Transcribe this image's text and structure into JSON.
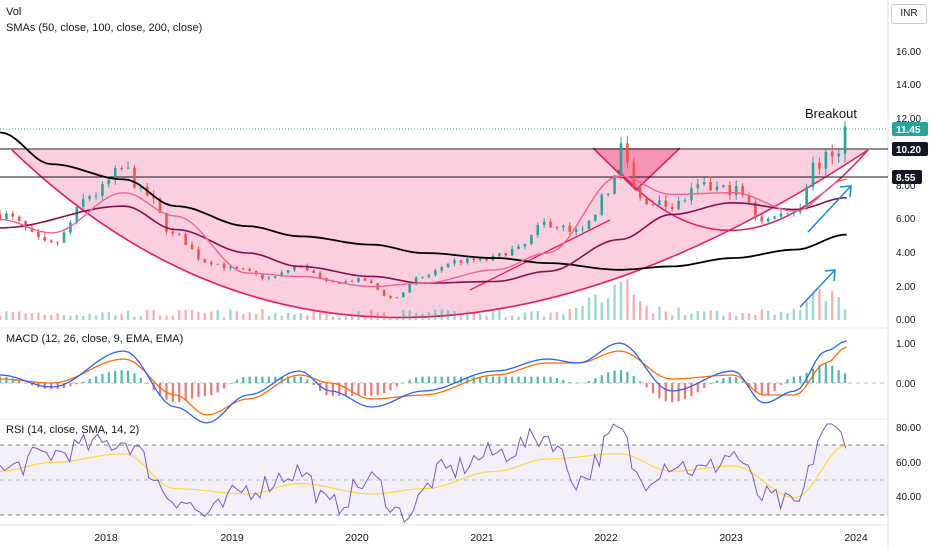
{
  "legends": {
    "vol": "Vol",
    "smas": "SMAs (50, close, 100, close, 200, close)",
    "macd": "MACD (12, 26, close, 9, EMA, EMA)",
    "rsi": "RSI (14, close, SMA, 14, 2)"
  },
  "currency": "INR",
  "annotation": "Breakout",
  "price_axis": {
    "ticks": [
      "16.00",
      "14.00",
      "12.00",
      "8.00",
      "6.00",
      "4.00",
      "2.00",
      "0.00"
    ],
    "badges": [
      {
        "label": "11.45",
        "color": "#26a69a"
      },
      {
        "label": "10.20",
        "color": "#131722"
      },
      {
        "label": "8.55",
        "color": "#131722"
      }
    ]
  },
  "macd_axis": {
    "ticks": [
      "1.00",
      "0.00"
    ]
  },
  "rsi_axis": {
    "ticks": [
      "80.00",
      "60.00",
      "40.00"
    ]
  },
  "time_axis": {
    "ticks": [
      "2018",
      "2019",
      "2020",
      "2021",
      "2022",
      "2023",
      "2024"
    ]
  },
  "colors": {
    "up": "#26a69a",
    "down": "#ef5350",
    "cup_fill": "#f7a8c4",
    "cup_line": "#e91e63",
    "sma50": "#f06292",
    "sma100": "#880e4f",
    "sma200": "#000000",
    "macd_line": "#2962ff",
    "signal_line": "#ff6d00",
    "rsi_line": "#7e57c2",
    "rsi_ma": "#fdd835",
    "arrow": "#1e88e5"
  },
  "chart_data": {
    "type": "line",
    "title": "",
    "x_range": [
      "2017-01",
      "2024-03"
    ],
    "price": {
      "ylim": [
        0,
        17
      ],
      "series": [
        {
          "x": [
            "2017-01",
            "2017-06",
            "2017-10",
            "2018-01",
            "2018-03",
            "2018-06",
            "2018-09",
            "2018-12",
            "2019-03",
            "2019-06",
            "2019-09",
            "2019-12",
            "2020-03",
            "2020-06",
            "2020-09",
            "2020-12",
            "2021-03",
            "2021-06",
            "2021-09",
            "2021-12",
            "2022-01",
            "2022-03",
            "2022-06",
            "2022-09",
            "2022-12",
            "2023-03",
            "2023-06",
            "2023-08",
            "2023-10",
            "2023-11"
          ],
          "y": [
            6.3,
            4.5,
            7.5,
            9.0,
            7.5,
            5.0,
            3.5,
            3.0,
            2.5,
            3.2,
            2.2,
            2.4,
            1.3,
            2.6,
            3.5,
            3.6,
            4.2,
            5.8,
            5.2,
            7.5,
            10.3,
            7.2,
            6.8,
            7.9,
            7.8,
            6.0,
            6.5,
            9.3,
            10.0,
            11.45
          ]
        }
      ],
      "sma50": {
        "x": [
          "2017-01",
          "2017-06",
          "2018-01",
          "2018-06",
          "2019-01",
          "2019-06",
          "2020-01",
          "2020-06",
          "2021-01",
          "2021-06",
          "2022-01",
          "2022-06",
          "2022-12",
          "2023-06",
          "2023-11"
        ],
        "y": [
          6.0,
          5.2,
          7.6,
          6.2,
          2.8,
          2.6,
          2.0,
          2.2,
          3.0,
          4.0,
          8.6,
          7.5,
          7.6,
          6.5,
          8.4
        ]
      },
      "sma100": {
        "x": [
          "2017-01",
          "2018-01",
          "2018-06",
          "2019-01",
          "2019-06",
          "2020-01",
          "2020-06",
          "2021-01",
          "2021-06",
          "2022-01",
          "2022-06",
          "2022-12",
          "2023-06",
          "2023-11"
        ],
        "y": [
          5.5,
          6.8,
          5.4,
          4.0,
          3.2,
          2.6,
          2.2,
          2.3,
          2.9,
          4.8,
          6.3,
          7.0,
          6.6,
          7.3
        ]
      },
      "sma200": {
        "x": [
          "2017-01",
          "2017-06",
          "2018-01",
          "2018-06",
          "2019-01",
          "2019-06",
          "2020-01",
          "2020-06",
          "2021-01",
          "2021-06",
          "2022-01",
          "2022-06",
          "2022-12",
          "2023-06",
          "2023-11"
        ],
        "y": [
          11.2,
          9.3,
          8.4,
          6.8,
          5.6,
          5.0,
          4.5,
          4.0,
          3.7,
          3.4,
          3.0,
          3.2,
          3.7,
          4.2,
          5.1
        ]
      },
      "levels": [
        {
          "label": "10.20",
          "value": 10.2
        },
        {
          "label": "8.55",
          "value": 8.55
        },
        {
          "label": "11.45",
          "value": 11.45
        }
      ],
      "volume_peaks": [
        {
          "x": "2022-01",
          "value": 4.5
        },
        {
          "x": "2023-09",
          "value": 3.3
        }
      ]
    },
    "macd": {
      "ylim": [
        -1.0,
        1.3
      ],
      "macd_line": {
        "x": [
          "2017-01",
          "2017-06",
          "2018-01",
          "2018-06",
          "2018-09",
          "2019-01",
          "2019-06",
          "2019-09",
          "2020-01",
          "2020-06",
          "2021-01",
          "2021-06",
          "2021-09",
          "2022-01",
          "2022-06",
          "2022-12",
          "2023-03",
          "2023-06",
          "2023-09",
          "2023-11"
        ],
        "y": [
          0.2,
          -0.1,
          0.8,
          -0.6,
          -1.0,
          -0.3,
          0.3,
          -0.2,
          -0.6,
          -0.2,
          0.3,
          0.6,
          0.5,
          1.0,
          -0.2,
          0.3,
          -0.5,
          -0.2,
          0.8,
          1.05
        ]
      },
      "signal_line": {
        "x": [
          "2017-01",
          "2017-06",
          "2018-01",
          "2018-06",
          "2018-09",
          "2019-01",
          "2019-06",
          "2019-09",
          "2020-01",
          "2020-06",
          "2021-01",
          "2021-06",
          "2021-09",
          "2022-01",
          "2022-06",
          "2022-12",
          "2023-03",
          "2023-06",
          "2023-09",
          "2023-11"
        ],
        "y": [
          0.1,
          0.0,
          0.6,
          -0.3,
          -0.8,
          -0.4,
          0.2,
          0.0,
          -0.4,
          -0.3,
          0.2,
          0.5,
          0.5,
          0.8,
          0.1,
          0.2,
          -0.3,
          -0.3,
          0.5,
          0.9
        ]
      }
    },
    "rsi": {
      "ylim": [
        25,
        85
      ],
      "bands": [
        70,
        50,
        30
      ],
      "rsi_line": {
        "x": [
          "2017-01",
          "2017-06",
          "2017-10",
          "2018-01",
          "2018-06",
          "2018-09",
          "2019-01",
          "2019-06",
          "2019-09",
          "2020-01",
          "2020-04",
          "2020-08",
          "2021-01",
          "2021-06",
          "2021-09",
          "2022-01",
          "2022-03",
          "2022-06",
          "2022-09",
          "2022-12",
          "2023-03",
          "2023-06",
          "2023-09",
          "2023-11"
        ],
        "y": [
          55,
          65,
          70,
          72,
          40,
          30,
          45,
          55,
          35,
          50,
          30,
          55,
          65,
          75,
          50,
          78,
          50,
          60,
          55,
          65,
          40,
          35,
          80,
          75
        ]
      },
      "rsi_ma": {
        "x": [
          "2017-01",
          "2017-06",
          "2018-01",
          "2018-06",
          "2019-01",
          "2019-06",
          "2020-01",
          "2020-06",
          "2021-01",
          "2021-06",
          "2022-01",
          "2022-06",
          "2022-12",
          "2023-06",
          "2023-11"
        ],
        "y": [
          55,
          60,
          65,
          45,
          42,
          48,
          42,
          45,
          55,
          62,
          65,
          55,
          58,
          40,
          70
        ]
      }
    }
  }
}
